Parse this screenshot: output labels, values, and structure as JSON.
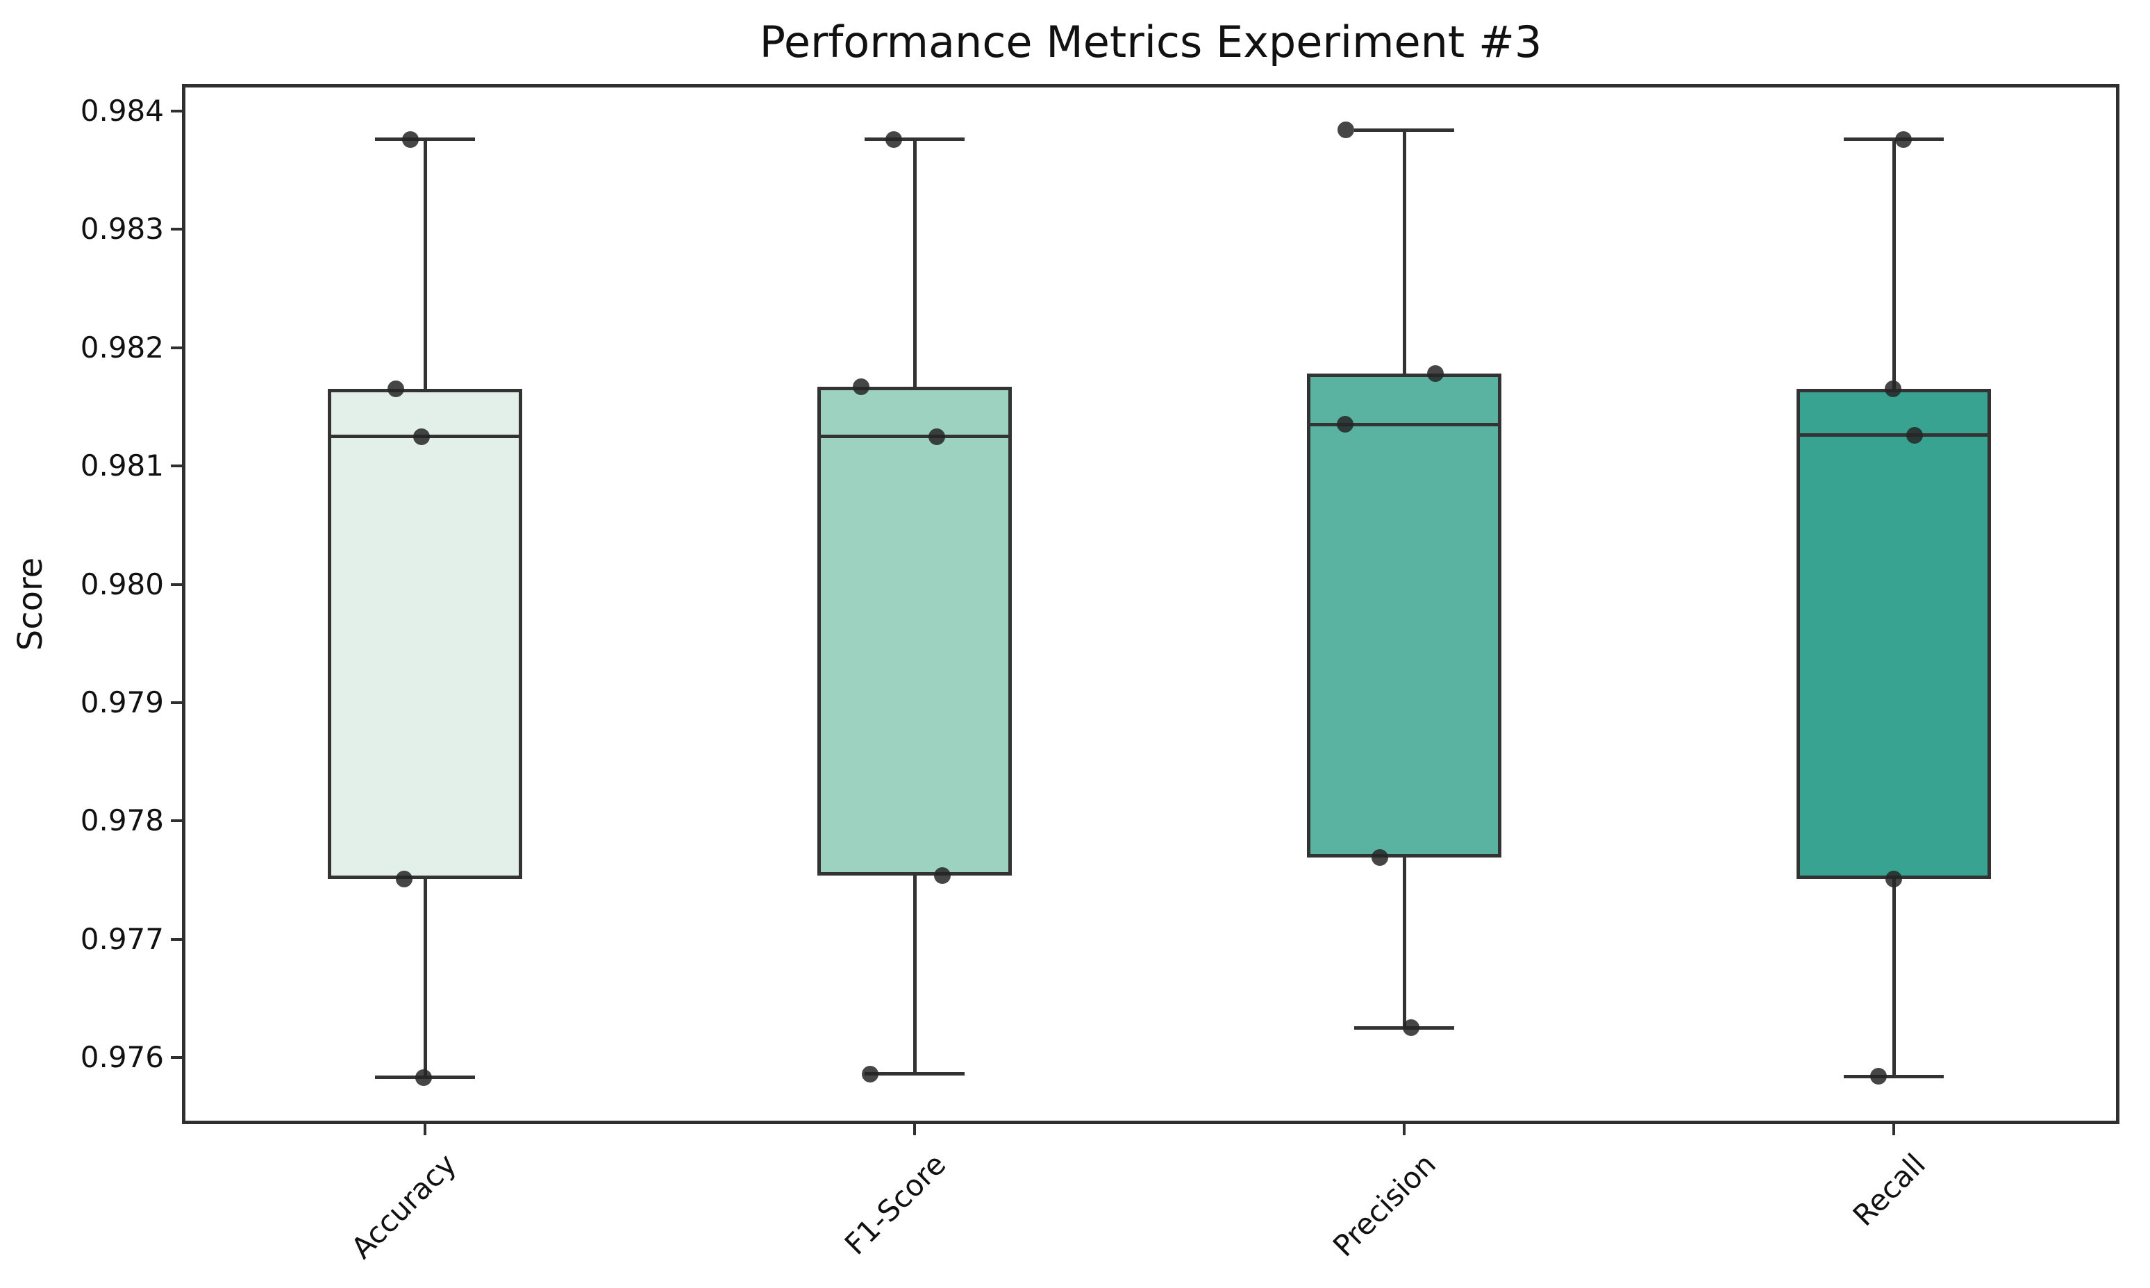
{
  "figure": {
    "title": "Performance Metrics Experiment #3",
    "y_axis_label": "Score"
  },
  "chart_data": {
    "type": "boxplot",
    "title": "Performance Metrics Experiment #3",
    "xlabel": "",
    "ylabel": "Score",
    "categories": [
      "Accuracy",
      "F1-Score",
      "Precision",
      "Recall"
    ],
    "y_tick_labels": [
      "0.976",
      "0.977",
      "0.978",
      "0.979",
      "0.980",
      "0.981",
      "0.982",
      "0.983",
      "0.984"
    ],
    "y_ticks": [
      0.976,
      0.977,
      0.978,
      0.979,
      0.98,
      0.981,
      0.982,
      0.983,
      0.984
    ],
    "ylim": [
      0.97545,
      0.98425
    ],
    "grid": false,
    "legend": "none",
    "box_edge_color": "#333333",
    "point_color": "#262626",
    "series": [
      {
        "name": "Accuracy",
        "fill_color": "#e2f0e9",
        "whisker_low": 0.97583,
        "q1": 0.97751,
        "median": 0.98125,
        "q3": 0.98165,
        "whisker_high": 0.98376,
        "points": [
          {
            "value": 0.98376,
            "dx": -21
          },
          {
            "value": 0.98165,
            "dx": -42
          },
          {
            "value": 0.98125,
            "dx": -5
          },
          {
            "value": 0.97751,
            "dx": -30
          },
          {
            "value": 0.97583,
            "dx": -2
          }
        ]
      },
      {
        "name": "F1-Score",
        "fill_color": "#9dd2c0",
        "whisker_low": 0.97586,
        "q1": 0.97754,
        "median": 0.98125,
        "q3": 0.98167,
        "whisker_high": 0.98376,
        "points": [
          {
            "value": 0.98376,
            "dx": -30
          },
          {
            "value": 0.98167,
            "dx": -77
          },
          {
            "value": 0.98125,
            "dx": 32
          },
          {
            "value": 0.97754,
            "dx": 40
          },
          {
            "value": 0.97586,
            "dx": -64
          }
        ]
      },
      {
        "name": "Precision",
        "fill_color": "#5ab3a1",
        "whisker_low": 0.97625,
        "q1": 0.97769,
        "median": 0.98135,
        "q3": 0.98178,
        "whisker_high": 0.98384,
        "points": [
          {
            "value": 0.98384,
            "dx": -84
          },
          {
            "value": 0.98178,
            "dx": 45
          },
          {
            "value": 0.98135,
            "dx": -85
          },
          {
            "value": 0.97769,
            "dx": -35
          },
          {
            "value": 0.97625,
            "dx": 10
          }
        ]
      },
      {
        "name": "Recall",
        "fill_color": "#37a390",
        "whisker_low": 0.97584,
        "q1": 0.97751,
        "median": 0.98126,
        "q3": 0.98165,
        "whisker_high": 0.98376,
        "points": [
          {
            "value": 0.98376,
            "dx": 14
          },
          {
            "value": 0.98165,
            "dx": -1
          },
          {
            "value": 0.98126,
            "dx": 30
          },
          {
            "value": 0.97751,
            "dx": 0
          },
          {
            "value": 0.97584,
            "dx": -22
          }
        ]
      }
    ]
  }
}
